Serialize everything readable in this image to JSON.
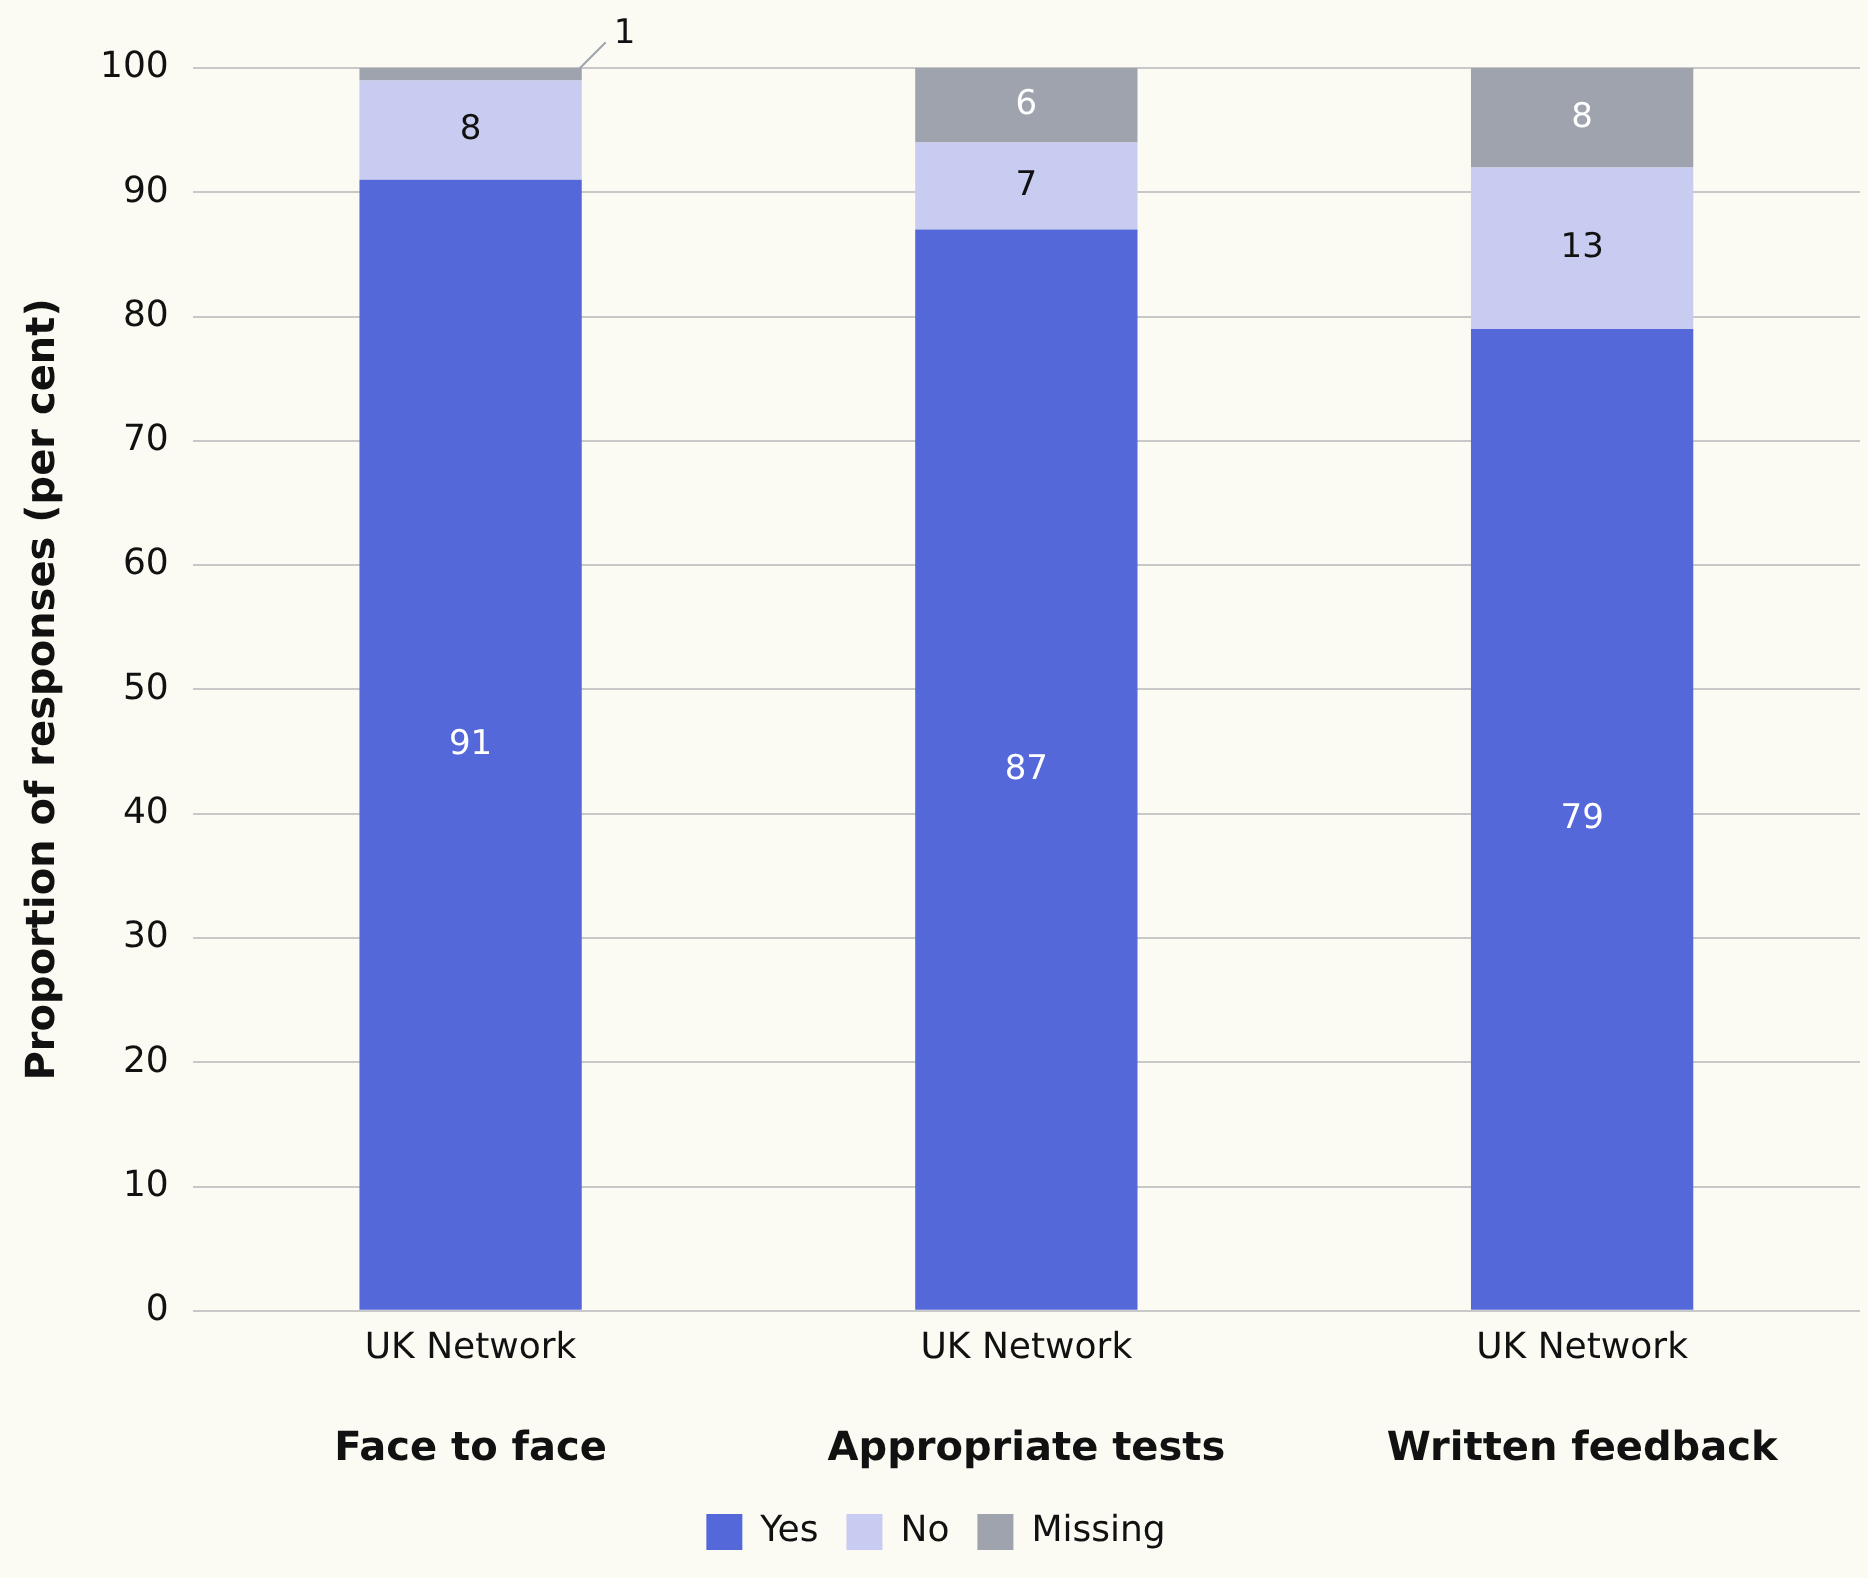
{
  "chart_data": {
    "type": "bar",
    "stacked": true,
    "ylabel": "Proportion of responses (per cent)",
    "categories": [
      "UK Network",
      "UK Network",
      "UK Network"
    ],
    "series": [
      {
        "name": "Yes",
        "color": "#5468d9",
        "values": [
          91,
          87,
          79
        ]
      },
      {
        "name": "No",
        "color": "#c8ccf0",
        "values": [
          8,
          7,
          13
        ]
      },
      {
        "name": "Missing",
        "color": "#9ea3ad",
        "values": [
          1,
          6,
          8
        ]
      }
    ],
    "ylim": [
      0,
      100
    ],
    "yticks": [
      0,
      10,
      20,
      30,
      40,
      50,
      60,
      70,
      80,
      90,
      100
    ],
    "grid": "y",
    "legend": "bottom",
    "data_labels": true,
    "annotations": [
      "Face to face",
      "Appropriate tests",
      "Written feedback"
    ]
  }
}
